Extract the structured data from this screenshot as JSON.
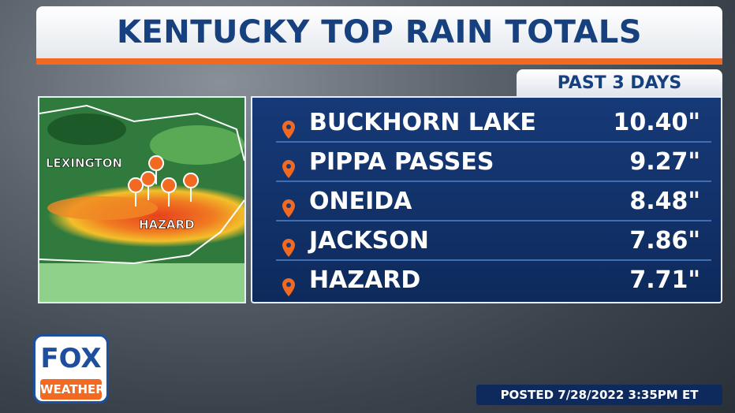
{
  "header": {
    "title": "KENTUCKY TOP RAIN TOTALS",
    "subtitle": "PAST 3 DAYS"
  },
  "map": {
    "labels": [
      "LEXINGTON",
      "HAZARD"
    ]
  },
  "table": {
    "rows": [
      [
        "BUCKHORN LAKE",
        "10.40\""
      ],
      [
        "PIPPA PASSES",
        "9.27\""
      ],
      [
        "ONEIDA",
        "8.48\""
      ],
      [
        "JACKSON",
        "7.86\""
      ],
      [
        "HAZARD",
        "7.71\""
      ]
    ]
  },
  "logo": {
    "top": "FOX",
    "bottom": "WEATHER"
  },
  "footer": {
    "posted": "POSTED 7/28/2022 3:35PM ET"
  }
}
